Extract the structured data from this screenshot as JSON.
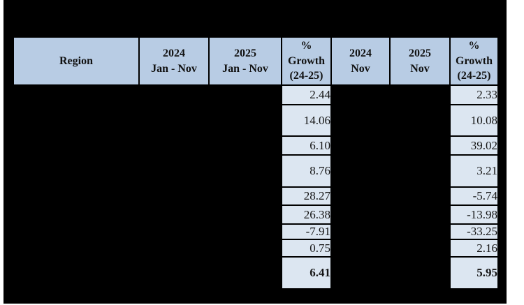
{
  "table": {
    "columns": [
      {
        "label": "Region"
      },
      {
        "label": "2024\nJan - Nov"
      },
      {
        "label": "2025\nJan - Nov"
      },
      {
        "label": "%\nGrowth\n(24-25)"
      },
      {
        "label": "2024\nNov"
      },
      {
        "label": "2025\nNov"
      },
      {
        "label": "%\nGrowth\n(24-25)"
      }
    ],
    "rows": [
      {
        "growth_jan_nov": "2.44",
        "growth_nov": "2.33",
        "is_total": false
      },
      {
        "growth_jan_nov": "14.06",
        "growth_nov": "10.08",
        "is_total": false
      },
      {
        "growth_jan_nov": "6.10",
        "growth_nov": "39.02",
        "is_total": false
      },
      {
        "growth_jan_nov": "8.76",
        "growth_nov": "3.21",
        "is_total": false
      },
      {
        "growth_jan_nov": "28.27",
        "growth_nov": "-5.74",
        "is_total": false
      },
      {
        "growth_jan_nov": "26.38",
        "growth_nov": "-13.98",
        "is_total": false
      },
      {
        "growth_jan_nov": "-7.91",
        "growth_nov": "-33.25",
        "is_total": false
      },
      {
        "growth_jan_nov": "0.75",
        "growth_nov": "2.16",
        "is_total": false
      },
      {
        "growth_jan_nov": "6.41",
        "growth_nov": "5.95",
        "is_total": true
      }
    ]
  },
  "colors": {
    "header_bg": "#b8cce4",
    "value_bg": "#dce6f1",
    "redaction": "#000000",
    "border": "#000000",
    "page_bg": "#ffffff"
  }
}
